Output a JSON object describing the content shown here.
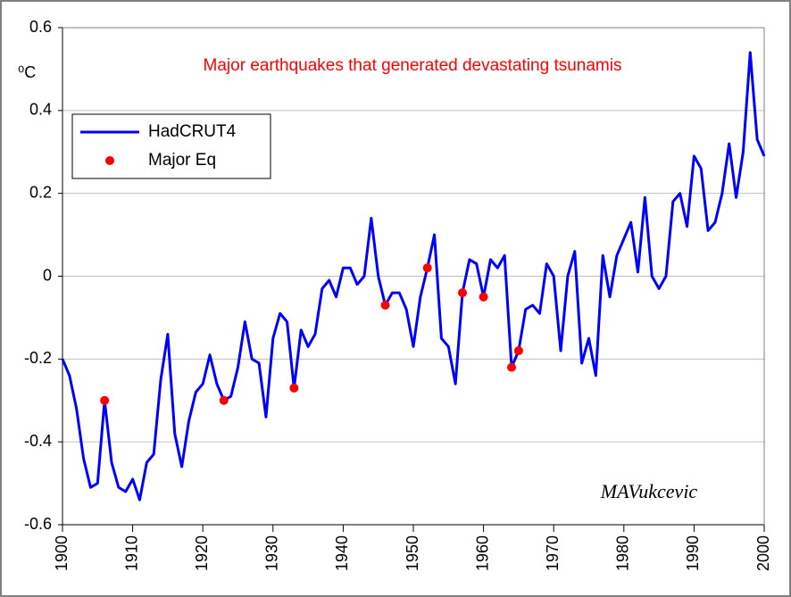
{
  "chart_data": {
    "type": "line",
    "title": "Major earthquakes that generated devastating tsunamis",
    "y_label": "⁰C",
    "annotation": "MAVukcevic",
    "xlim": [
      1900,
      2000
    ],
    "xticks": [
      1900,
      1910,
      1920,
      1930,
      1940,
      1950,
      1960,
      1970,
      1980,
      1990,
      2000
    ],
    "ylim": [
      -0.6,
      0.6
    ],
    "yticks": [
      0.6,
      0.4,
      0.2,
      0,
      -0.2,
      -0.4,
      -0.6
    ],
    "grid": true,
    "legend": "upper left",
    "series": [
      {
        "name": "HadCRUT4",
        "type": "line",
        "color": "#0000ff",
        "x": [
          1900,
          1901,
          1902,
          1903,
          1904,
          1905,
          1906,
          1907,
          1908,
          1909,
          1910,
          1911,
          1912,
          1913,
          1914,
          1915,
          1916,
          1917,
          1918,
          1919,
          1920,
          1921,
          1922,
          1923,
          1924,
          1925,
          1926,
          1927,
          1928,
          1929,
          1930,
          1931,
          1932,
          1933,
          1934,
          1935,
          1936,
          1937,
          1938,
          1939,
          1940,
          1941,
          1942,
          1943,
          1944,
          1945,
          1946,
          1947,
          1948,
          1949,
          1950,
          1951,
          1952,
          1953,
          1954,
          1955,
          1956,
          1957,
          1958,
          1959,
          1960,
          1961,
          1962,
          1963,
          1964,
          1965,
          1966,
          1967,
          1968,
          1969,
          1970,
          1971,
          1972,
          1973,
          1974,
          1975,
          1976,
          1977,
          1978,
          1979,
          1980,
          1981,
          1982,
          1983,
          1984,
          1985,
          1986,
          1987,
          1988,
          1989,
          1990,
          1991,
          1992,
          1993,
          1994,
          1995,
          1996,
          1997,
          1998,
          1999,
          2000
        ],
        "values": [
          -0.2,
          -0.24,
          -0.32,
          -0.44,
          -0.51,
          -0.5,
          -0.3,
          -0.45,
          -0.51,
          -0.52,
          -0.49,
          -0.54,
          -0.45,
          -0.43,
          -0.25,
          -0.14,
          -0.38,
          -0.46,
          -0.35,
          -0.28,
          -0.26,
          -0.19,
          -0.26,
          -0.3,
          -0.29,
          -0.22,
          -0.11,
          -0.2,
          -0.21,
          -0.34,
          -0.15,
          -0.09,
          -0.11,
          -0.27,
          -0.13,
          -0.17,
          -0.14,
          -0.03,
          -0.01,
          -0.05,
          0.02,
          0.02,
          -0.02,
          0.0,
          0.14,
          0.0,
          -0.07,
          -0.04,
          -0.04,
          -0.08,
          -0.17,
          -0.05,
          0.02,
          0.1,
          -0.15,
          -0.17,
          -0.26,
          -0.04,
          0.04,
          0.03,
          -0.05,
          0.04,
          0.02,
          0.05,
          -0.22,
          -0.18,
          -0.08,
          -0.07,
          -0.09,
          0.03,
          0.0,
          -0.18,
          0.0,
          0.06,
          -0.21,
          -0.15,
          -0.24,
          0.05,
          -0.05,
          0.05,
          0.09,
          0.13,
          0.01,
          0.19,
          0.0,
          -0.03,
          0.0,
          0.18,
          0.2,
          0.12,
          0.29,
          0.26,
          0.11,
          0.13,
          0.2,
          0.32,
          0.19,
          0.3,
          0.54,
          0.33,
          0.29
        ]
      },
      {
        "name": "Major Eq",
        "type": "scatter",
        "color": "#ff0000",
        "x": [
          1906,
          1923,
          1933,
          1946,
          1952,
          1957,
          1960,
          1964,
          1965
        ],
        "values": [
          -0.3,
          -0.3,
          -0.27,
          -0.07,
          0.02,
          -0.04,
          -0.05,
          -0.22,
          -0.18
        ]
      }
    ]
  }
}
